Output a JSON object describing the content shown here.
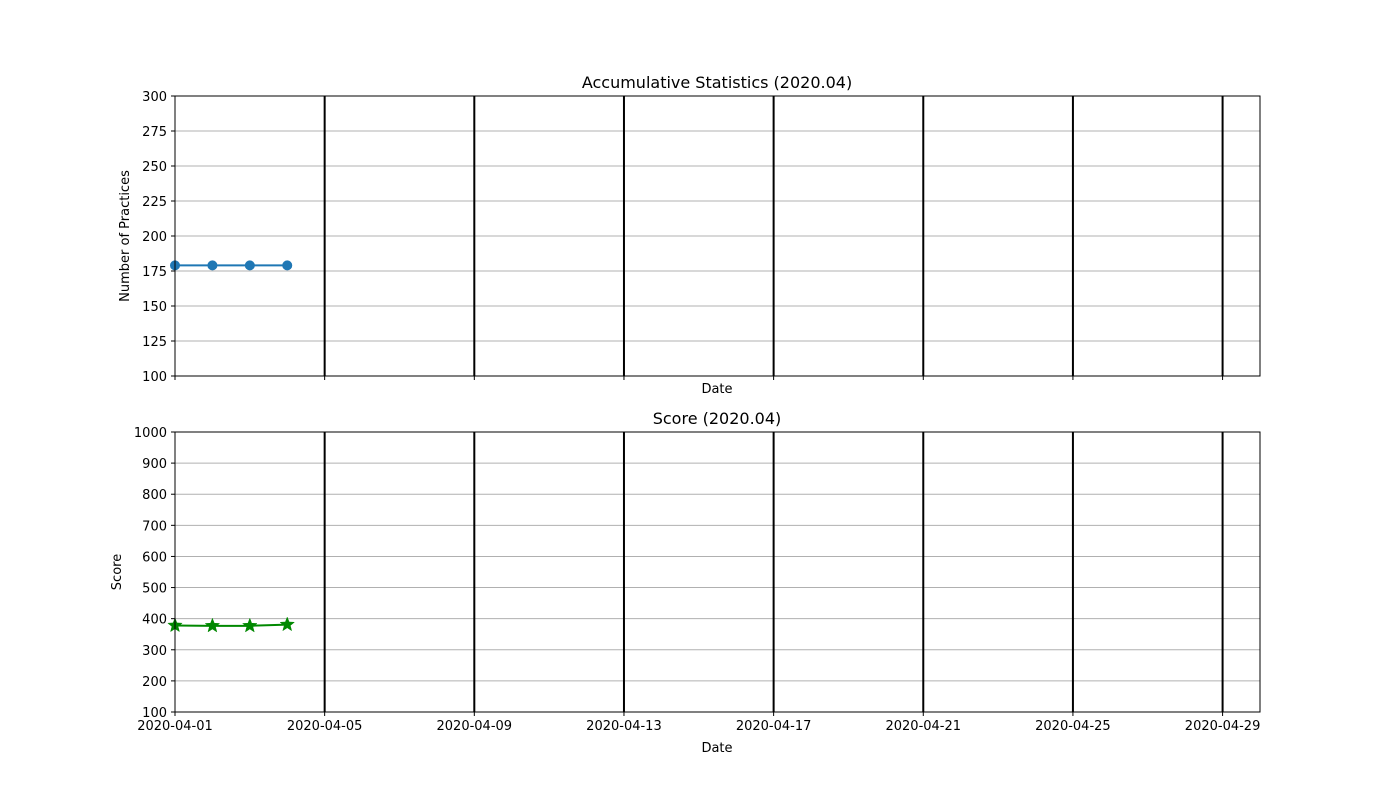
{
  "chart_data": [
    {
      "type": "line",
      "title": "Accumulative Statistics (2020.04)",
      "xlabel": "Date",
      "ylabel": "Number of Practices",
      "xlim": [
        "2020-04-01",
        "2020-04-30"
      ],
      "ylim": [
        100,
        300
      ],
      "yticks": [
        100,
        125,
        150,
        175,
        200,
        225,
        250,
        275,
        300
      ],
      "xticks": [
        "2020-04-01",
        "2020-04-05",
        "2020-04-09",
        "2020-04-13",
        "2020-04-17",
        "2020-04-21",
        "2020-04-25",
        "2020-04-29"
      ],
      "show_xtick_labels": false,
      "grid": "y",
      "vertical_lines": [
        "2020-04-05",
        "2020-04-09",
        "2020-04-13",
        "2020-04-17",
        "2020-04-21",
        "2020-04-25",
        "2020-04-29"
      ],
      "series": [
        {
          "marker": "circle",
          "color": "#1f77b4",
          "x": [
            "2020-04-01",
            "2020-04-02",
            "2020-04-03",
            "2020-04-04"
          ],
          "values": [
            179,
            179,
            179,
            179
          ]
        }
      ]
    },
    {
      "type": "line",
      "title": "Score (2020.04)",
      "xlabel": "Date",
      "ylabel": "Score",
      "xlim": [
        "2020-04-01",
        "2020-04-30"
      ],
      "ylim": [
        100,
        1000
      ],
      "yticks": [
        100,
        200,
        300,
        400,
        500,
        600,
        700,
        800,
        900,
        1000
      ],
      "xticks": [
        "2020-04-01",
        "2020-04-05",
        "2020-04-09",
        "2020-04-13",
        "2020-04-17",
        "2020-04-21",
        "2020-04-25",
        "2020-04-29"
      ],
      "show_xtick_labels": true,
      "grid": "y",
      "vertical_lines": [
        "2020-04-05",
        "2020-04-09",
        "2020-04-13",
        "2020-04-17",
        "2020-04-21",
        "2020-04-25",
        "2020-04-29"
      ],
      "series": [
        {
          "marker": "star",
          "color": "#008800",
          "x": [
            "2020-04-01",
            "2020-04-02",
            "2020-04-03",
            "2020-04-04"
          ],
          "values": [
            378,
            377,
            377,
            381
          ]
        }
      ]
    }
  ]
}
